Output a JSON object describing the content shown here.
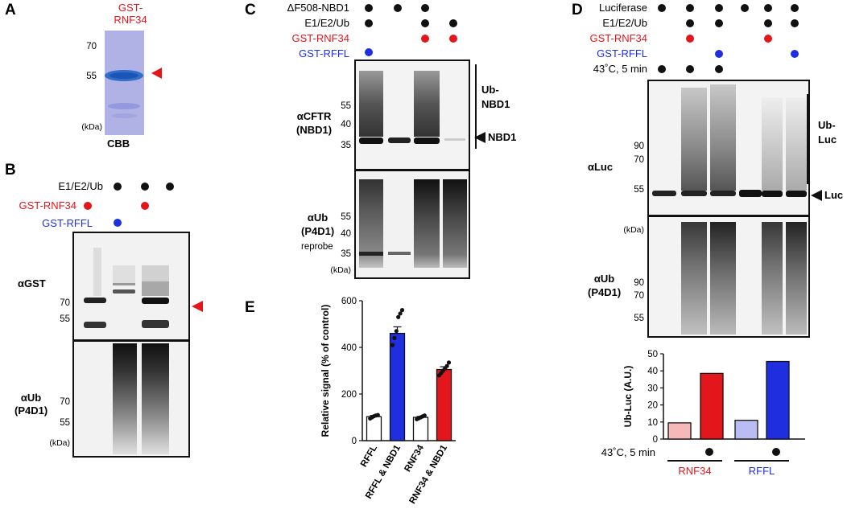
{
  "panel_a": {
    "letter": "A",
    "protein_label": [
      "GST-",
      "RNF34"
    ],
    "markers": [
      "70",
      "55"
    ],
    "unit": "(kDa)",
    "stain": "CBB"
  },
  "panel_b": {
    "letter": "B",
    "rows": [
      "E1/E2/Ub",
      "GST-RNF34",
      "GST-RFFL"
    ],
    "blots": [
      {
        "label": "αGST",
        "markers": [
          "70",
          "55"
        ]
      },
      {
        "label": [
          "αUb",
          "(P4D1)"
        ],
        "markers": [
          "70",
          "55"
        ],
        "unit": "(kDa)"
      }
    ]
  },
  "panel_c": {
    "letter": "C",
    "rows": [
      "ΔF508-NBD1",
      "E1/E2/Ub",
      "GST-RNF34",
      "GST-RFFL"
    ],
    "blots": [
      {
        "label": [
          "αCFTR",
          "(NBD1)"
        ],
        "markers": [
          "55",
          "40",
          "35"
        ]
      },
      {
        "label": [
          "αUb",
          "(P4D1)"
        ],
        "sublabel": "reprobe",
        "markers": [
          "55",
          "40",
          "35"
        ],
        "unit": "(kDa)"
      }
    ],
    "annotations": {
      "ub_nbd1": [
        "Ub-",
        "NBD1"
      ],
      "nbd1": "NBD1"
    }
  },
  "panel_d": {
    "letter": "D",
    "rows": [
      "Luciferase",
      "E1/E2/Ub",
      "GST-RNF34",
      "GST-RFFL",
      "43˚C, 5 min"
    ],
    "blots": [
      {
        "label": "αLuc",
        "markers": [
          "90",
          "70",
          "55"
        ]
      },
      {
        "label": [
          "αUb",
          "(P4D1)"
        ],
        "markers": [
          "90",
          "70",
          "55"
        ],
        "unit": "(kDa)"
      }
    ],
    "annotations": {
      "ub_luc": [
        "Ub-",
        "Luc"
      ],
      "luc": "Luc"
    },
    "heat_row": "43˚C, 5 min",
    "groups": [
      "RNF34",
      "RFFL"
    ]
  },
  "panel_e": {
    "letter": "E"
  },
  "colors": {
    "red": "#e3161c",
    "blue": "#1f2fe0",
    "light_red": "#f6b8b8",
    "light_blue": "#b9bdf4"
  },
  "chart_data": [
    {
      "type": "bar",
      "panel": "E",
      "categories": [
        "RFFL",
        "RFFL & NBD1",
        "RNF34",
        "RNF34 & NBD1"
      ],
      "values": [
        103,
        460,
        100,
        305
      ],
      "errors": [
        5,
        28,
        4,
        12
      ],
      "points": [
        [
          95,
          100,
          105,
          108,
          110
        ],
        [
          410,
          440,
          470,
          530,
          545,
          560
        ],
        [
          92,
          96,
          100,
          104,
          108
        ],
        [
          280,
          290,
          300,
          310,
          320,
          335
        ]
      ],
      "colors": [
        "#ffffff",
        "#1f2fe0",
        "#ffffff",
        "#e3161c"
      ],
      "xlabel": "",
      "ylabel": "Relative signal (% of control)",
      "ylim": [
        0,
        600
      ],
      "yticks": [
        0,
        200,
        400,
        600
      ]
    },
    {
      "type": "bar",
      "panel": "D",
      "categories": [
        "RNF34",
        "RNF34 43˚C",
        "RFFL",
        "RFFL 43˚C"
      ],
      "values": [
        9.5,
        38.5,
        11,
        45.5
      ],
      "colors": [
        "#f6b8b8",
        "#e3161c",
        "#b9bdf4",
        "#1f2fe0"
      ],
      "xlabel": "",
      "ylabel": "Ub-Luc (A.U.)",
      "ylim": [
        0,
        50
      ],
      "yticks": [
        0,
        10,
        20,
        30,
        40,
        50
      ]
    }
  ]
}
